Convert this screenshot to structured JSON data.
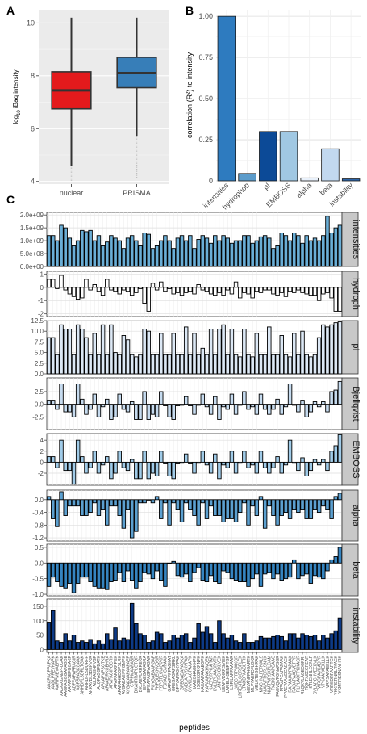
{
  "chart_data": [
    {
      "panel_label": "A",
      "type": "boxplot",
      "ylabel_prefix": "log",
      "ylabel_sub": "10",
      "ylabel_rest": " iBaq intensity",
      "ylim": [
        3.9,
        10.5
      ],
      "yticks": [
        4,
        6,
        8,
        10
      ],
      "grid": true,
      "categories": [
        "nuclear",
        "PRISMA"
      ],
      "boxes": [
        {
          "category": "nuclear",
          "q1": 6.75,
          "median": 7.45,
          "q3": 8.15,
          "whisker_low": 4.6,
          "whisker_high": 10.2,
          "outlier_low": 4.0,
          "color": "#e41a1c"
        },
        {
          "category": "PRISMA",
          "q1": 7.55,
          "median": 8.1,
          "q3": 8.7,
          "whisker_low": 5.7,
          "whisker_high": 10.2,
          "outlier_low": 4.1,
          "color": "#377eb8"
        }
      ]
    },
    {
      "panel_label": "B",
      "type": "bar",
      "ylabel_pre": "correlation (R",
      "ylabel_sup": "2",
      "ylabel_post": ") to intensity",
      "ylim": [
        0,
        1.04
      ],
      "yticks": [
        "0",
        "0.25",
        "0.50",
        "0.75",
        "1.00"
      ],
      "grid": true,
      "categories": [
        "intensities",
        "hydrophob",
        "pI",
        "EMBOSS",
        "alpha",
        "beta",
        "instability"
      ],
      "values": [
        1.0,
        0.045,
        0.3,
        0.3,
        0.018,
        0.195,
        0.012
      ],
      "colors": [
        "#2e7bbf",
        "#5c9ccb",
        "#0c4a97",
        "#a0c8e3",
        "#e9f1fb",
        "#c2d8ef",
        "#2b64a8"
      ]
    },
    {
      "panel_label": "C",
      "type": "faceted-bar",
      "xlabel": "peptides",
      "peptides": [
        "AACPACPPAPKA",
        "AADLPPEVHAPK",
        "AAFIPMEVAEFTK",
        "AAGGAGAEPFLGAK",
        "AAGPAGGGAPAGDE",
        "AAPAFSEFGGAKP",
        "ADFEAPAPRAGIR",
        "AGPSPAGKGAAK",
        "AHHDFLSDRLTGAK",
        "AHHDFLSDQRFP",
        "AKKAVDLSDEKVKR",
        "ALLPAEIHPVSP",
        "ALQPAGGFDATK",
        "APAAPVPSGTKE",
        "APAAEIRKGEHRA",
        "APAPAGIPGGRK",
        "APAPAPARPPEK",
        "APAPAHHDGPSLRK",
        "AVGAKAEIPPGMPK",
        "AYGAKAAPAAPAEP",
        "CTPPMAAPASR",
        "DKAKRRAPLGTQR",
        "DKLAEVLRRREKR",
        "EFVAEGAPAGRA",
        "EPKAPAGPAAGAR",
        "FGYGAEAAPGAF",
        "FHPQLEKHVQGR",
        "FSPGPLSVIQVKR",
        "FSPAEHGVPAAK",
        "GAPAPPPPAGKAT",
        "GFEGAGAPSIRKL",
        "GFPVAPRGKVPAK",
        "GFEGADAPAGKA",
        "GVDLAPVSKVPAK",
        "GYVKLAGPAAAPK",
        "IAAEGHAGKHPK",
        "ISGEKGRKPNFK",
        "KAEAAPAAAEGPK",
        "KAFAAPAKHVQEK",
        "KAEPSRPGAHAR",
        "KVLEPLAAGRVTK",
        "LANFRGIGKLVEK",
        "LEAPVDIRRSVIEK",
        "LAFIELKGENRTGP",
        "LSPILAPPAAAAR",
        "LWEGTRPVAKGR",
        "LRRENTLGGRGFLEK",
        "LTAQDPAAGLTRK",
        "MEVANFPHGARTK",
        "MLPVAEPDFLGKR",
        "MRLKTEGGHRAK",
        "MNGHVLFERVALS",
        "NIAVVFRGRLSNKK",
        "NNATWRSKPLGAM",
        "PADKKAAPGAAG",
        "PAGVQVFGNAPSGR",
        "PPAAPGAPAPAAK",
        "PPAEPAAAEGAEAEK",
        "RAPAAIAPPAPAAK",
        "RADAPAAGVEFPR",
        "RLPLAQFPKKAGR",
        "RLQKVLAGEDGRRI",
        "RQKFASEGPEAR",
        "STLENHLEGNLF",
        "SVLAPGHVEEKVLK",
        "TWRGPAVGADPR",
        "VPKAAPAEKLLK",
        "VRPSAPAEKLLK",
        "VRRSDRPAAPTGK",
        "YKKRERNNLRVAEK",
        "YKMRRESNAYHRK"
      ],
      "facets": [
        {
          "name": "intensities",
          "ylim": [
            0,
            2100000000.0
          ],
          "yticks": [
            0,
            500000000.0,
            1000000000.0,
            1500000000.0,
            2000000000.0
          ],
          "ytick_labels": [
            "0.0e+00",
            "5.0e+08",
            "1.0e+09",
            "1.5e+09",
            "2.0e+09"
          ],
          "color": "#6aaed6",
          "values": [
            1200000000.0,
            1200000000.0,
            1000000000.0,
            1600000000.0,
            1500000000.0,
            1100000000.0,
            800000000.0,
            1000000000.0,
            1400000000.0,
            1350000000.0,
            1400000000.0,
            1000000000.0,
            1200000000.0,
            800000000.0,
            950000000.0,
            1200000000.0,
            1100000000.0,
            1000000000.0,
            700000000.0,
            1100000000.0,
            1200000000.0,
            1000000000.0,
            800000000.0,
            1300000000.0,
            1250000000.0,
            700000000.0,
            800000000.0,
            1000000000.0,
            1200000000.0,
            1000000000.0,
            700000000.0,
            1100000000.0,
            1200000000.0,
            1000000000.0,
            1200000000.0,
            700000000.0,
            1050000000.0,
            1200000000.0,
            1100000000.0,
            900000000.0,
            1200000000.0,
            1000000000.0,
            1200000000.0,
            1100000000.0,
            900000000.0,
            1000000000.0,
            1000000000.0,
            1200000000.0,
            1200000000.0,
            900000000.0,
            1000000000.0,
            1150000000.0,
            1200000000.0,
            1100000000.0,
            700000000.0,
            800000000.0,
            1300000000.0,
            1200000000.0,
            1000000000.0,
            1300000000.0,
            1200000000.0,
            900000000.0,
            1200000000.0,
            1000000000.0,
            1100000000.0,
            1000000000.0,
            1200000000.0,
            1950000000.0,
            1300000000.0,
            1500000000.0,
            1600000000.0
          ]
        },
        {
          "name": "hydroph",
          "ylim": [
            -2.2,
            1.2
          ],
          "yticks": [
            -2,
            -1,
            0,
            1
          ],
          "ytick_labels": [
            "-2",
            "-1",
            "0",
            "1"
          ],
          "color": "#ffffff",
          "values": [
            0.6,
            0.6,
            -0.1,
            0.9,
            -0.2,
            -0.5,
            -0.7,
            -0.9,
            -0.8,
            0.6,
            -0.2,
            0.2,
            -0.3,
            -0.6,
            0.6,
            -0.2,
            -0.3,
            -0.5,
            -0.2,
            -0.3,
            -0.6,
            -0.4,
            -0.1,
            -1.2,
            -1.8,
            0.3,
            -0.2,
            0.4,
            -0.3,
            -0.1,
            -0.5,
            -0.4,
            -0.6,
            -0.4,
            -0.3,
            -0.5,
            0.2,
            -0.2,
            -0.3,
            -0.5,
            -0.6,
            -0.4,
            -0.6,
            -0.2,
            -0.5,
            0.4,
            -0.8,
            -0.4,
            -0.5,
            -0.8,
            -0.3,
            -0.4,
            -0.2,
            -0.2,
            -0.5,
            -0.6,
            -0.4,
            -0.7,
            -0.3,
            -0.4,
            -0.2,
            -0.4,
            -0.5,
            -0.6,
            -0.6,
            -1.0,
            -0.5,
            -0.4,
            -0.8,
            -1.8,
            -1.8
          ]
        },
        {
          "name": "pI",
          "ylim": [
            0,
            12.5
          ],
          "yticks": [
            0,
            2.5,
            5,
            7.5,
            10,
            12.5
          ],
          "ytick_labels": [
            "0.0",
            "2.5",
            "5.0",
            "7.5",
            "10.0",
            "12.5"
          ],
          "color": "#dce8f5",
          "values": [
            8.5,
            8.5,
            4.5,
            11.5,
            10.5,
            10.5,
            4.5,
            11.5,
            10.5,
            8.5,
            4.5,
            9.5,
            4.5,
            11.5,
            4.5,
            11.5,
            5.0,
            4.5,
            9.0,
            8.0,
            4.5,
            4.0,
            4.5,
            10.5,
            10.0,
            4.5,
            4.5,
            9.5,
            4.5,
            4.5,
            9.5,
            4.5,
            4.5,
            11.0,
            4.5,
            9.5,
            4.5,
            6.0,
            4.5,
            10.5,
            4.5,
            10.5,
            11.5,
            4.5,
            10.5,
            4.5,
            4.0,
            10.5,
            4.5,
            4.0,
            9.5,
            4.5,
            4.5,
            11.0,
            4.5,
            4.5,
            9.0,
            4.5,
            4.0,
            9.5,
            4.5,
            10.0,
            4.5,
            4.0,
            4.5,
            8.5,
            11.5,
            11.0,
            11.5,
            12.0,
            12.2
          ]
        },
        {
          "name": "Bjellqvist",
          "ylim": [
            -5.0,
            5.2
          ],
          "yticks": [
            -2.5,
            0,
            2.5
          ],
          "ytick_labels": [
            "-2.5",
            "0.0",
            "2.5"
          ],
          "color": "#c6dbef",
          "values": [
            0.8,
            0.8,
            -1.0,
            4.0,
            -1.5,
            -1.5,
            -2.5,
            4.0,
            1.0,
            -2.0,
            -1.0,
            2.0,
            -2.5,
            -0.5,
            1.0,
            -3.0,
            -2.5,
            2.0,
            -1.0,
            -1.5,
            0.5,
            -3.0,
            -3.0,
            2.5,
            -3.0,
            -2.0,
            -2.5,
            2.5,
            -0.3,
            -2.5,
            -3.0,
            -0.3,
            -0.2,
            1.5,
            -0.3,
            -2.0,
            -0.2,
            2.0,
            -0.5,
            -2.0,
            1.5,
            -3.0,
            -0.5,
            -1.0,
            2.0,
            -2.0,
            -0.2,
            2.5,
            -1.0,
            -0.5,
            -2.0,
            2.0,
            -1.0,
            -2.0,
            -1.0,
            1.0,
            -2.0,
            -0.5,
            4.0,
            -0.2,
            -1.5,
            0.8,
            -2.5,
            -1.5,
            0.5,
            -0.5,
            0.5,
            -1.5,
            2.5,
            2.8,
            4.5
          ]
        },
        {
          "name": "EMBOSS",
          "ylim": [
            -4.2,
            5.2
          ],
          "yticks": [
            -2,
            0,
            2,
            4
          ],
          "ytick_labels": [
            "-2",
            "0",
            "2",
            "4"
          ],
          "color": "#a0cbe8",
          "values": [
            1.0,
            1.0,
            -1.0,
            4.0,
            -1.5,
            -1.5,
            -4.0,
            4.0,
            1.0,
            -2.0,
            -1.0,
            2.0,
            -2.0,
            -0.5,
            1.0,
            -3.0,
            -2.0,
            2.0,
            -1.0,
            -1.5,
            0.5,
            -3.0,
            -3.0,
            2.0,
            -3.0,
            -2.0,
            -2.5,
            2.0,
            -0.3,
            -2.5,
            -3.0,
            -0.3,
            -0.2,
            1.5,
            -0.3,
            -2.0,
            -0.2,
            2.0,
            -0.5,
            -2.0,
            1.5,
            -3.0,
            -0.5,
            -1.0,
            2.0,
            -2.0,
            -0.2,
            2.0,
            -1.0,
            -0.5,
            -2.0,
            2.0,
            -1.0,
            -2.0,
            -1.0,
            1.0,
            -2.0,
            -0.5,
            4.0,
            -0.2,
            -1.5,
            0.8,
            -2.5,
            -1.5,
            0.5,
            -0.5,
            0.5,
            -1.5,
            2.0,
            3.0,
            5.0
          ]
        },
        {
          "name": "alpha",
          "ylim": [
            -1.3,
            0.3
          ],
          "yticks": [
            -1.2,
            -0.8,
            -0.4,
            0
          ],
          "ytick_labels": [
            "-1.2",
            "-0.8",
            "-0.4",
            "0.0"
          ],
          "color": "#5ca0d0",
          "values": [
            0.1,
            -0.6,
            -0.85,
            0.25,
            -0.5,
            -0.2,
            -0.2,
            -0.2,
            -0.5,
            -0.5,
            -0.4,
            -0.1,
            -0.5,
            -0.3,
            -0.8,
            -0.2,
            -0.2,
            -0.5,
            -0.9,
            -0.3,
            -1.2,
            -1.0,
            -0.1,
            -0.1,
            0.0,
            -0.1,
            0.1,
            -0.6,
            -0.1,
            -0.8,
            -0.1,
            -0.3,
            -0.7,
            -0.1,
            -0.3,
            -0.5,
            -0.8,
            -0.1,
            -0.6,
            -0.2,
            -0.5,
            -0.5,
            -0.7,
            -0.6,
            -0.6,
            -0.7,
            -0.4,
            -0.1,
            -0.8,
            -0.2,
            -0.5,
            0.1,
            -0.9,
            -0.2,
            -0.5,
            -0.8,
            -0.5,
            -0.4,
            -0.6,
            -0.3,
            -0.4,
            -0.3,
            -0.6,
            -0.6,
            -0.3,
            -0.4,
            -0.2,
            -0.3,
            -0.6,
            0.1,
            0.2
          ]
        },
        {
          "name": "beta",
          "ylim": [
            -1.05,
            0.6
          ],
          "yticks": [
            -1.0,
            -0.5,
            0,
            0.5
          ],
          "ytick_labels": [
            "-1.0",
            "-0.5",
            "0.0",
            "0.5"
          ],
          "color": "#3584c0",
          "values": [
            -0.75,
            -0.45,
            -0.6,
            -0.75,
            -0.8,
            -0.65,
            -0.95,
            -0.65,
            -0.45,
            -0.45,
            -0.6,
            -0.75,
            -0.8,
            -0.8,
            -0.85,
            -0.6,
            -0.55,
            -0.3,
            -0.6,
            -0.25,
            -0.55,
            -0.8,
            -0.6,
            -0.3,
            -0.35,
            -0.5,
            -0.25,
            -0.55,
            -0.75,
            0.0,
            0.05,
            -0.4,
            -0.45,
            -0.35,
            -0.6,
            -0.3,
            -0.15,
            -0.55,
            -0.6,
            -0.4,
            -0.6,
            -0.65,
            -0.25,
            -0.3,
            -0.5,
            -0.55,
            -0.6,
            -0.6,
            -0.75,
            -0.5,
            -0.35,
            -0.75,
            -0.35,
            -0.3,
            -0.5,
            -0.35,
            -0.55,
            -0.5,
            -0.45,
            0.1,
            -0.5,
            -0.4,
            -0.35,
            -0.65,
            -0.4,
            -0.45,
            -0.5,
            -0.25,
            0.1,
            0.2,
            0.5
          ]
        },
        {
          "name": "instability",
          "ylim": [
            -10,
            175
          ],
          "yticks": [
            0,
            50,
            100,
            150
          ],
          "ytick_labels": [
            "0",
            "50",
            "100",
            "150"
          ],
          "color": "#0d3a86",
          "values": [
            95,
            135,
            30,
            25,
            55,
            30,
            50,
            25,
            30,
            25,
            35,
            20,
            30,
            20,
            55,
            35,
            75,
            30,
            40,
            35,
            160,
            90,
            55,
            50,
            25,
            30,
            60,
            55,
            25,
            30,
            50,
            40,
            50,
            55,
            25,
            40,
            90,
            60,
            80,
            55,
            25,
            100,
            55,
            40,
            50,
            30,
            25,
            55,
            25,
            25,
            30,
            45,
            40,
            40,
            45,
            50,
            45,
            30,
            55,
            55,
            40,
            55,
            50,
            45,
            50,
            30,
            50,
            40,
            55,
            65,
            110
          ]
        }
      ]
    }
  ]
}
